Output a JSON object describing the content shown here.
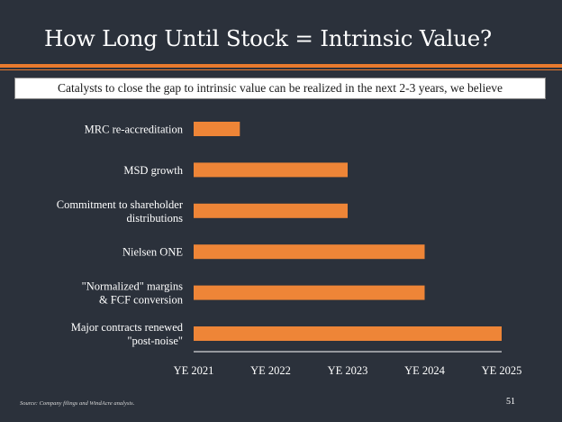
{
  "slide": {
    "title": "How Long Until Stock = Intrinsic Value?",
    "subtitle": "Catalysts to close the gap to intrinsic value can be realized in the next 2-3 years, we believe",
    "source": "Source: Company filings and WindAcre analysis.",
    "page_number": "51"
  },
  "colors": {
    "background": "#2b313b",
    "accent": "#e87a2e",
    "bar": "#ee8537",
    "text": "#ffffff"
  },
  "chart_data": {
    "type": "bar",
    "orientation": "horizontal",
    "title": "",
    "xlabel": "",
    "ylabel": "",
    "grid": false,
    "categories": [
      [
        "MRC re-accreditation"
      ],
      [
        "MSD growth"
      ],
      [
        "Commitment to shareholder",
        "distributions"
      ],
      [
        "Nielsen ONE"
      ],
      [
        "\"Normalized\" margins",
        "& FCF conversion"
      ],
      [
        "Major contracts renewed",
        "\"post-noise\""
      ]
    ],
    "values": [
      2021.6,
      2023.0,
      2023.0,
      2024.0,
      2024.0,
      2025.0
    ],
    "xlim": [
      2021,
      2025
    ],
    "x_ticks": [
      2021,
      2022,
      2023,
      2024,
      2025
    ],
    "x_tick_labels": [
      "YE 2021",
      "YE 2022",
      "YE 2023",
      "YE 2024",
      "YE 2025"
    ]
  }
}
